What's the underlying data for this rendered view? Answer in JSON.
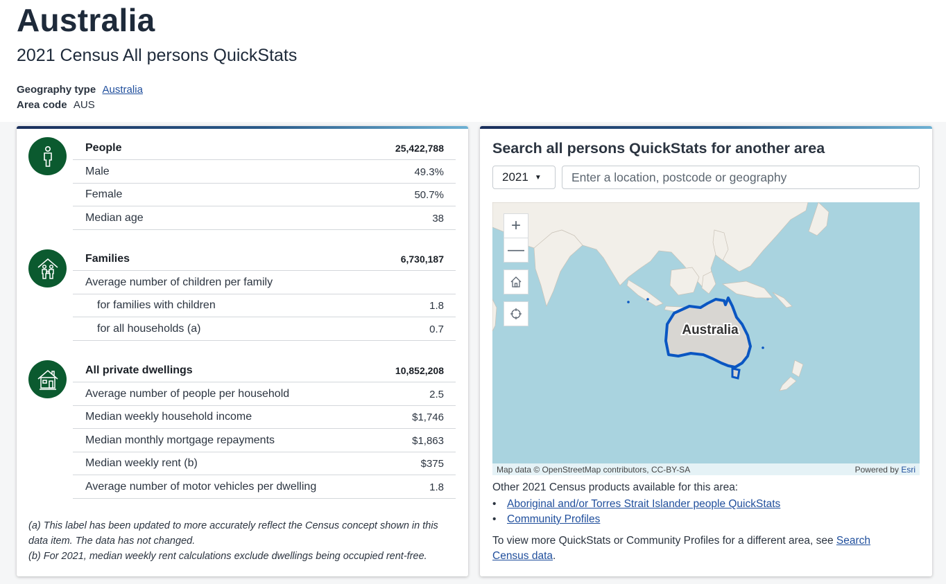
{
  "header": {
    "title": "Australia",
    "subtitle": "2021 Census All persons QuickStats",
    "geography_label": "Geography type",
    "geography_value": "Australia",
    "area_code_label": "Area code",
    "area_code_value": "AUS"
  },
  "sections": {
    "people": {
      "icon": "person-icon",
      "rows": [
        {
          "label": "People",
          "value": "25,422,788"
        },
        {
          "label": "Male",
          "value": "49.3%"
        },
        {
          "label": "Female",
          "value": "50.7%"
        },
        {
          "label": "Median age",
          "value": "38"
        }
      ]
    },
    "families": {
      "icon": "family-home-icon",
      "rows": [
        {
          "label": "Families",
          "value": "6,730,187"
        },
        {
          "label": "Average number of children per family",
          "value": ""
        },
        {
          "label": "for families with children",
          "value": "1.8"
        },
        {
          "label": "for all households (a)",
          "value": "0.7"
        }
      ]
    },
    "dwellings": {
      "icon": "house-icon",
      "rows": [
        {
          "label": "All private dwellings",
          "value": "10,852,208"
        },
        {
          "label": "Average number of people per household",
          "value": "2.5"
        },
        {
          "label": "Median weekly household income",
          "value": "$1,746"
        },
        {
          "label": "Median monthly mortgage repayments",
          "value": "$1,863"
        },
        {
          "label": "Median weekly rent (b)",
          "value": "$375"
        },
        {
          "label": "Average number of motor vehicles per dwelling",
          "value": "1.8"
        }
      ]
    }
  },
  "footnotes": {
    "a": "(a) This label has been updated to more accurately reflect the Census concept shown in this data item. The data has not changed.",
    "b": "(b) For 2021, median weekly rent calculations exclude dwellings being occupied rent-free."
  },
  "search": {
    "title": "Search all persons QuickStats for another area",
    "year": "2021",
    "placeholder": "Enter a location, postcode or geography"
  },
  "map": {
    "label": "Australia",
    "attribution": "Map data © OpenStreetMap contributors, CC-BY-SA",
    "powered_by": "Powered by",
    "esri": "Esri",
    "controls": [
      "zoom-in-icon",
      "zoom-out-icon",
      "home-icon",
      "locate-icon"
    ]
  },
  "products": {
    "label": "Other 2021 Census products available for this area:",
    "items": [
      "Aboriginal and/or Torres Strait Islander people QuickStats",
      "Community Profiles"
    ],
    "more_text": "To view more QuickStats or Community Profiles for a different area, see",
    "more_link": "Search Census data",
    "more_end": "."
  },
  "colors": {
    "icon_green": "#0b5a2f",
    "link": "#1f4e9c",
    "ocean": "#a9d3df",
    "land": "#f2efe9",
    "highlight": "#0a56c2"
  }
}
